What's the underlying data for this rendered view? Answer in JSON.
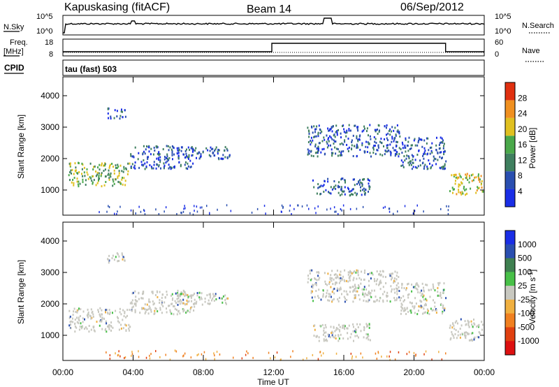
{
  "header": {
    "station": "Kapuskasing (fitACF)",
    "beam": "Beam 14",
    "date": "06/Sep/2012"
  },
  "noise_panel": {
    "left_label": "N.Sky",
    "left_ticks": [
      "10^5",
      "10^0"
    ],
    "right_ticks": [
      "10^5",
      "10^0"
    ],
    "right_label": "N.Search"
  },
  "freq_panel": {
    "left_label_1": "Freq.",
    "left_label_2": "[MHz]",
    "left_ticks": [
      "18",
      "8"
    ],
    "right_ticks": [
      "60",
      "0"
    ],
    "right_label": "Nave",
    "cpid_label": "CPID",
    "cpid_text": "tau (fast) 503"
  },
  "colors": {
    "power": [
      "#1a2ee6",
      "#2a4fb0",
      "#3f7f5f",
      "#4aa84a",
      "#e0c020",
      "#f09020",
      "#e03010"
    ],
    "velocity": [
      "#1a2ee6",
      "#2a4fb0",
      "#3f8050",
      "#48c048",
      "#c8c8c0",
      "#f0b040",
      "#f08020",
      "#e04010",
      "#dd1010"
    ],
    "freq_line": "#000000"
  },
  "chart_data": [
    {
      "type": "heatmap",
      "name": "power",
      "ylabel": "Slant Range [km]",
      "yticks": [
        "1000",
        "2000",
        "3000",
        "4000"
      ],
      "ylim": [
        200,
        4600
      ],
      "xlim_hours": [
        0,
        24
      ],
      "colorbar_label": "Power [dB]",
      "colorbar_ticks": [
        "4",
        "8",
        "12",
        "16",
        "20",
        "24",
        "28"
      ],
      "colorbar_range": [
        0,
        32
      ],
      "regions": [
        {
          "t": [
            0.3,
            3.8
          ],
          "r": [
            1150,
            1900
          ],
          "level": "mid"
        },
        {
          "t": [
            3.8,
            7.5
          ],
          "r": [
            1700,
            2450
          ],
          "level": "low"
        },
        {
          "t": [
            2.5,
            3.6
          ],
          "r": [
            3300,
            3650
          ],
          "level": "low"
        },
        {
          "t": [
            6.5,
            9.5
          ],
          "r": [
            2000,
            2400
          ],
          "level": "low"
        },
        {
          "t": [
            13.9,
            19.2
          ],
          "r": [
            2100,
            3100
          ],
          "level": "low"
        },
        {
          "t": [
            14.2,
            17.5
          ],
          "r": [
            850,
            1400
          ],
          "level": "low"
        },
        {
          "t": [
            19.2,
            21.8
          ],
          "r": [
            1700,
            2700
          ],
          "level": "low"
        },
        {
          "t": [
            22.0,
            23.9
          ],
          "r": [
            850,
            1550
          ],
          "level": "high"
        }
      ]
    },
    {
      "type": "heatmap",
      "name": "velocity",
      "ylabel": "Slant Range [km]",
      "yticks": [
        "1000",
        "2000",
        "3000",
        "4000"
      ],
      "ylim": [
        200,
        4600
      ],
      "xlim_hours": [
        0,
        24
      ],
      "colorbar_label": "Velocity [m s^-1]",
      "colorbar_ticks": [
        "1000",
        "500",
        "100",
        "25",
        "-25",
        "-100",
        "-500",
        "-1000"
      ],
      "xlabel": "Time UT",
      "xticks": [
        "00:00",
        "04:00",
        "08:00",
        "12:00",
        "16:00",
        "20:00",
        "00:00"
      ]
    },
    {
      "type": "line",
      "name": "frequency",
      "x_hours": [
        0,
        11.9,
        11.9,
        21.8,
        21.8,
        24
      ],
      "y_mhz": [
        10.5,
        10.5,
        15.5,
        15.5,
        10.5,
        10.5
      ],
      "ylim": [
        8,
        18
      ]
    }
  ]
}
